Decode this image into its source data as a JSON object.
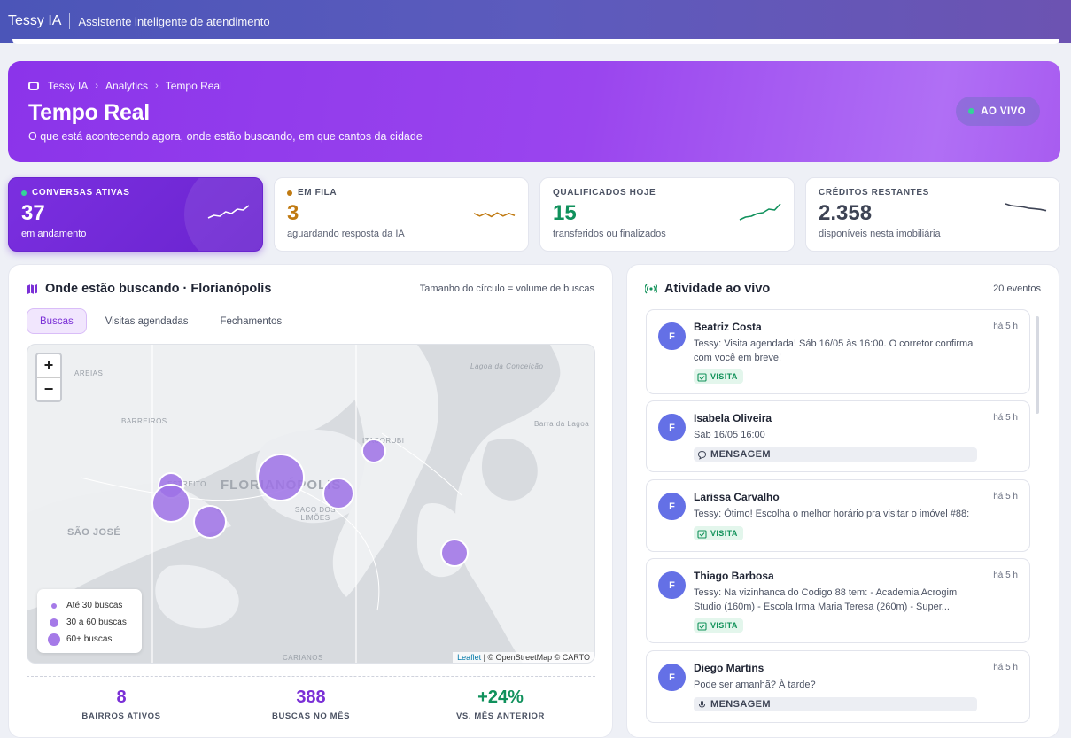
{
  "app": {
    "title": "Tessy IA",
    "tagline": "Assistente inteligente de atendimento"
  },
  "hero": {
    "breadcrumb": [
      "Tessy IA",
      "Analytics",
      "Tempo Real"
    ],
    "title": "Tempo Real",
    "subtitle": "O que está acontecendo agora, onde estão buscando, em que cantos da cidade",
    "live_label": "AO VIVO"
  },
  "kpis": [
    {
      "label": "CONVERSAS ATIVAS",
      "value": "37",
      "desc": "em andamento",
      "color": "#ffffff",
      "dot": "#34d399",
      "trend": [
        0.3,
        0.45,
        0.4,
        0.65,
        0.55,
        0.8,
        0.75,
        1.0
      ]
    },
    {
      "label": "EM FILA",
      "value": "3",
      "desc": "aguardando resposta da IA",
      "color": "#c07a12",
      "dot": "#c07a12",
      "trend": [
        0.6,
        0.35,
        0.6,
        0.3,
        0.65,
        0.35,
        0.6,
        0.4
      ]
    },
    {
      "label": "QUALIFICADOS HOJE",
      "value": "15",
      "desc": "transferidos ou finalizados",
      "color": "#10915c",
      "dot": "",
      "trend": [
        0.1,
        0.25,
        0.3,
        0.45,
        0.5,
        0.7,
        0.65,
        1.0
      ]
    },
    {
      "label": "CRÉDITOS RESTANTES",
      "value": "2.358",
      "desc": "disponíveis nesta imobiliária",
      "color": "#3d4354",
      "dot": "",
      "trend": [
        1.0,
        0.85,
        0.8,
        0.75,
        0.65,
        0.6,
        0.55,
        0.45
      ]
    }
  ],
  "map_panel": {
    "title": "Onde estão buscando · Florianópolis",
    "note": "Tamanho do círculo = volume de buscas",
    "tabs": [
      "Buscas",
      "Visitas agendadas",
      "Fechamentos"
    ],
    "active_tab": 0,
    "zoom_in": "+",
    "zoom_out": "−",
    "place_labels": [
      "FLORIANÓPOLIS",
      "SÃO JOSÉ",
      "BARREIROS",
      "AREIAS",
      "SACO DOS LIMÕES",
      "ESTREITO",
      "ITACORUBI",
      "Lagoa da Conceição",
      "Barra da Lagoa",
      "CARIANOS"
    ],
    "legend": [
      "Até 30 buscas",
      "30 a 60 buscas",
      "60+ buscas"
    ],
    "attribution_leaflet": "Leaflet",
    "attribution_rest": "| © OpenStreetMap © CARTO",
    "stats": [
      {
        "value": "8",
        "label": "BAIRROS ATIVOS",
        "color": "#7a2fd6"
      },
      {
        "value": "388",
        "label": "BUSCAS NO MÊS",
        "color": "#7a2fd6"
      },
      {
        "value": "+24%",
        "label": "VS. MÊS ANTERIOR",
        "color": "#10915c"
      }
    ]
  },
  "activity": {
    "title": "Atividade ao vivo",
    "count": "20 eventos",
    "events": [
      {
        "initial": "F",
        "name": "Beatriz Costa",
        "time": "há 5 h",
        "message": "Tessy: Visita agendada! Sáb 16/05 às 16:00. O corretor confirma com você em breve!",
        "badge": "VISITA",
        "type": "visit"
      },
      {
        "initial": "F",
        "name": "Isabela Oliveira",
        "time": "há 5 h",
        "message": "Sáb 16/05 16:00",
        "badge": "MENSAGEM",
        "type": "msg"
      },
      {
        "initial": "F",
        "name": "Larissa Carvalho",
        "time": "há 5 h",
        "message": "Tessy: Ótimo! Escolha o melhor horário pra visitar o imóvel #88:",
        "badge": "VISITA",
        "type": "visit"
      },
      {
        "initial": "F",
        "name": "Thiago Barbosa",
        "time": "há 5 h",
        "message": "Tessy: Na vizinhanca do Codigo 88 tem: - Academia Acrogim Studio (160m) - Escola Irma Maria Teresa (260m) - Super...",
        "badge": "VISITA",
        "type": "visit"
      },
      {
        "initial": "F",
        "name": "Diego Martins",
        "time": "há 5 h",
        "message": "Pode ser amanhã? À tarde?",
        "badge": "MENSAGEM",
        "type": "audio"
      }
    ]
  }
}
